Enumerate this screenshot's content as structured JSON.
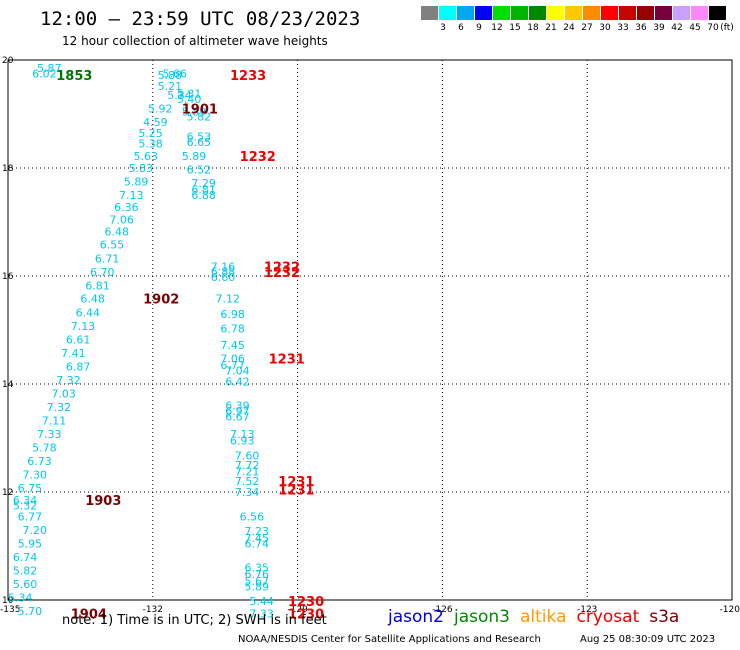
{
  "header": {
    "title": "12:00 – 23:59 UTC 08/23/2023",
    "subtitle": "12 hour collection of altimeter wave heights"
  },
  "legend": {
    "unit": "(ft)",
    "bins": [
      {
        "label": "3",
        "color": "#808080"
      },
      {
        "label": "6",
        "color": "#00ffff"
      },
      {
        "label": "9",
        "color": "#00a8f0"
      },
      {
        "label": "12",
        "color": "#0000ff"
      },
      {
        "label": "15",
        "color": "#00e000"
      },
      {
        "label": "18",
        "color": "#00b400"
      },
      {
        "label": "21",
        "color": "#008800"
      },
      {
        "label": "24",
        "color": "#ffff00"
      },
      {
        "label": "27",
        "color": "#ffc800"
      },
      {
        "label": "30",
        "color": "#ff8c00"
      },
      {
        "label": "33",
        "color": "#ff0000"
      },
      {
        "label": "36",
        "color": "#c80000"
      },
      {
        "label": "39",
        "color": "#960000"
      },
      {
        "label": "42",
        "color": "#780040"
      },
      {
        "label": "45",
        "color": "#c8a0ff"
      },
      {
        "label": "70",
        "color": "#ff88ff"
      },
      {
        "label": "",
        "color": "#000000"
      }
    ]
  },
  "map": {
    "lon_ticks": [
      "-135",
      "-132",
      "-129",
      "-126",
      "-123",
      "-120"
    ],
    "lat_ticks": [
      "20",
      "18",
      "16",
      "14",
      "12",
      "10"
    ],
    "colors": {
      "wave": "#00c8f0",
      "jason3": "#007700",
      "s3a": "#7a0000",
      "cryosat": "#ee0000"
    }
  },
  "chart_data": {
    "type": "scatter",
    "xlim": [
      -135,
      -120
    ],
    "ylim": [
      10,
      20
    ],
    "grid": true,
    "series": [
      {
        "name": "wave_heights_track_a",
        "points": [
          {
            "lon": -134.4,
            "lat": 19.85,
            "v": "5.87"
          },
          {
            "lon": -134.5,
            "lat": 19.75,
            "v": "6.02"
          },
          {
            "lon": -131.9,
            "lat": 19.72,
            "v": "5.88"
          },
          {
            "lon": -131.9,
            "lat": 19.52,
            "v": "5.21"
          },
          {
            "lon": -131.7,
            "lat": 19.35,
            "v": "5.34"
          },
          {
            "lon": -132.1,
            "lat": 19.1,
            "v": "5.92"
          },
          {
            "lon": -132.2,
            "lat": 18.85,
            "v": "4.59"
          },
          {
            "lon": -132.3,
            "lat": 18.65,
            "v": "5.25"
          },
          {
            "lon": -132.3,
            "lat": 18.45,
            "v": "5.38"
          },
          {
            "lon": -132.4,
            "lat": 18.22,
            "v": "5.63"
          },
          {
            "lon": -132.5,
            "lat": 18.0,
            "v": "5.83"
          },
          {
            "lon": -132.6,
            "lat": 17.75,
            "v": "5.89"
          },
          {
            "lon": -132.7,
            "lat": 17.5,
            "v": "7.13"
          },
          {
            "lon": -132.8,
            "lat": 17.28,
            "v": "6.36"
          },
          {
            "lon": -132.9,
            "lat": 17.05,
            "v": "7.06"
          },
          {
            "lon": -133.0,
            "lat": 16.82,
            "v": "6.48"
          },
          {
            "lon": -133.1,
            "lat": 16.58,
            "v": "6.55"
          },
          {
            "lon": -133.2,
            "lat": 16.32,
            "v": "6.71"
          },
          {
            "lon": -133.3,
            "lat": 16.07,
            "v": "6.70"
          },
          {
            "lon": -133.4,
            "lat": 15.82,
            "v": "6.81"
          },
          {
            "lon": -133.5,
            "lat": 15.58,
            "v": "6.48"
          },
          {
            "lon": -133.6,
            "lat": 15.32,
            "v": "6.44"
          },
          {
            "lon": -133.7,
            "lat": 15.07,
            "v": "7.13"
          },
          {
            "lon": -133.8,
            "lat": 14.82,
            "v": "6.61"
          },
          {
            "lon": -133.9,
            "lat": 14.57,
            "v": "7.41"
          },
          {
            "lon": -133.8,
            "lat": 14.32,
            "v": "6.87"
          },
          {
            "lon": -134.0,
            "lat": 14.07,
            "v": "7.32"
          },
          {
            "lon": -134.1,
            "lat": 13.82,
            "v": "7.03"
          },
          {
            "lon": -134.2,
            "lat": 13.57,
            "v": "7.32"
          },
          {
            "lon": -134.3,
            "lat": 13.32,
            "v": "7.11"
          },
          {
            "lon": -134.4,
            "lat": 13.07,
            "v": "7.33"
          },
          {
            "lon": -134.5,
            "lat": 12.82,
            "v": "5.78"
          },
          {
            "lon": -134.6,
            "lat": 12.57,
            "v": "6.73"
          },
          {
            "lon": -134.7,
            "lat": 12.32,
            "v": "7.30"
          },
          {
            "lon": -134.8,
            "lat": 12.07,
            "v": "6.75"
          },
          {
            "lon": -134.9,
            "lat": 11.85,
            "v": "6.34"
          },
          {
            "lon": -134.9,
            "lat": 11.75,
            "v": "5.32"
          },
          {
            "lon": -134.8,
            "lat": 11.55,
            "v": "6.77"
          },
          {
            "lon": -134.7,
            "lat": 11.3,
            "v": "7.20"
          },
          {
            "lon": -134.8,
            "lat": 11.05,
            "v": "5.95"
          },
          {
            "lon": -134.9,
            "lat": 10.8,
            "v": "6.74"
          },
          {
            "lon": -134.9,
            "lat": 10.55,
            "v": "5.82"
          },
          {
            "lon": -134.9,
            "lat": 10.3,
            "v": "5.60"
          },
          {
            "lon": -135.0,
            "lat": 10.05,
            "v": "5.34"
          },
          {
            "lon": -134.8,
            "lat": 9.8,
            "v": "5.70"
          }
        ]
      },
      {
        "name": "wave_heights_track_b",
        "points": [
          {
            "lon": -131.8,
            "lat": 19.75,
            "v": "5.66"
          },
          {
            "lon": -131.5,
            "lat": 19.38,
            "v": "5.31"
          },
          {
            "lon": -131.5,
            "lat": 19.28,
            "v": "5.40"
          },
          {
            "lon": -131.4,
            "lat": 19.05,
            "v": "5.89"
          },
          {
            "lon": -131.3,
            "lat": 18.95,
            "v": "5.82"
          },
          {
            "lon": -131.3,
            "lat": 18.58,
            "v": "6.53"
          },
          {
            "lon": -131.3,
            "lat": 18.48,
            "v": "6.65"
          },
          {
            "lon": -131.4,
            "lat": 18.22,
            "v": "5.89"
          },
          {
            "lon": -131.3,
            "lat": 17.97,
            "v": "6.52"
          },
          {
            "lon": -131.2,
            "lat": 17.72,
            "v": "7.29"
          },
          {
            "lon": -131.2,
            "lat": 17.6,
            "v": "6.81"
          },
          {
            "lon": -131.2,
            "lat": 17.5,
            "v": "6.88"
          },
          {
            "lon": -130.8,
            "lat": 16.18,
            "v": "7.16"
          },
          {
            "lon": -130.8,
            "lat": 16.08,
            "v": "6.88"
          },
          {
            "lon": -130.8,
            "lat": 15.98,
            "v": "6.60"
          },
          {
            "lon": -130.7,
            "lat": 15.58,
            "v": "7.12"
          },
          {
            "lon": -130.6,
            "lat": 15.3,
            "v": "6.98"
          },
          {
            "lon": -130.6,
            "lat": 15.03,
            "v": "6.78"
          },
          {
            "lon": -130.6,
            "lat": 14.72,
            "v": "7.45"
          },
          {
            "lon": -130.6,
            "lat": 14.47,
            "v": "7.06"
          },
          {
            "lon": -130.6,
            "lat": 14.35,
            "v": "6.77"
          },
          {
            "lon": -130.5,
            "lat": 14.25,
            "v": "7.04"
          },
          {
            "lon": -130.5,
            "lat": 14.05,
            "v": "6.42"
          },
          {
            "lon": -130.5,
            "lat": 13.6,
            "v": "6.39"
          },
          {
            "lon": -130.5,
            "lat": 13.5,
            "v": "6.97"
          },
          {
            "lon": -130.5,
            "lat": 13.4,
            "v": "6.67"
          },
          {
            "lon": -130.4,
            "lat": 13.07,
            "v": "7.13"
          },
          {
            "lon": -130.4,
            "lat": 12.95,
            "v": "6.93"
          },
          {
            "lon": -130.3,
            "lat": 12.68,
            "v": "7.60"
          },
          {
            "lon": -130.3,
            "lat": 12.5,
            "v": "7.72"
          },
          {
            "lon": -130.3,
            "lat": 12.38,
            "v": "7.21"
          },
          {
            "lon": -130.3,
            "lat": 12.2,
            "v": "7.52"
          },
          {
            "lon": -130.3,
            "lat": 12.0,
            "v": "7.34"
          },
          {
            "lon": -130.2,
            "lat": 11.55,
            "v": "6.56"
          },
          {
            "lon": -130.1,
            "lat": 11.28,
            "v": "7.23"
          },
          {
            "lon": -130.1,
            "lat": 11.15,
            "v": "7.45"
          },
          {
            "lon": -130.1,
            "lat": 11.05,
            "v": "6.74"
          },
          {
            "lon": -130.1,
            "lat": 10.6,
            "v": "6.35"
          },
          {
            "lon": -130.1,
            "lat": 10.48,
            "v": "6.76"
          },
          {
            "lon": -130.1,
            "lat": 10.35,
            "v": "5.67"
          },
          {
            "lon": -130.1,
            "lat": 10.25,
            "v": "5.89"
          },
          {
            "lon": -130.0,
            "lat": 9.98,
            "v": "5.44"
          },
          {
            "lon": -130.0,
            "lat": 9.75,
            "v": "7.33"
          }
        ]
      }
    ],
    "time_labels": [
      {
        "lon": -134.0,
        "lat": 19.72,
        "t": "1853",
        "sat": "jason3"
      },
      {
        "lon": -130.4,
        "lat": 19.72,
        "t": "1233",
        "sat": "cryosat"
      },
      {
        "lon": -131.4,
        "lat": 19.1,
        "t": "1901",
        "sat": "s3a"
      },
      {
        "lon": -130.2,
        "lat": 18.22,
        "t": "1232",
        "sat": "cryosat"
      },
      {
        "lon": -132.2,
        "lat": 15.58,
        "t": "1902",
        "sat": "s3a"
      },
      {
        "lon": -129.7,
        "lat": 16.18,
        "t": "1232",
        "sat": "cryosat"
      },
      {
        "lon": -129.7,
        "lat": 16.07,
        "t": "1232",
        "sat": "cryosat"
      },
      {
        "lon": -129.6,
        "lat": 14.47,
        "t": "1231",
        "sat": "cryosat"
      },
      {
        "lon": -133.4,
        "lat": 11.85,
        "t": "1903",
        "sat": "s3a"
      },
      {
        "lon": -129.4,
        "lat": 12.2,
        "t": "1231",
        "sat": "cryosat"
      },
      {
        "lon": -129.4,
        "lat": 12.05,
        "t": "1231",
        "sat": "cryosat"
      },
      {
        "lon": -129.2,
        "lat": 9.98,
        "t": "1230",
        "sat": "cryosat"
      },
      {
        "lon": -129.2,
        "lat": 9.75,
        "t": "1230",
        "sat": "cryosat"
      },
      {
        "lon": -133.7,
        "lat": 9.75,
        "t": "1904",
        "sat": "s3a"
      }
    ]
  },
  "note": "note: 1) Time is in UTC; 2) SWH is in feet",
  "satellites": [
    {
      "label": "jason2",
      "color": "#0000dd"
    },
    {
      "label": "jason3",
      "color": "#008800"
    },
    {
      "label": "altika",
      "color": "#ff9900"
    },
    {
      "label": "cryosat",
      "color": "#ee0000"
    },
    {
      "label": "s3a",
      "color": "#7a0000"
    }
  ],
  "footer": {
    "credit": "NOAA/NESDIS Center for Satellite Applications and Research",
    "timestamp": "Aug 25 08:30:09 UTC 2023"
  }
}
